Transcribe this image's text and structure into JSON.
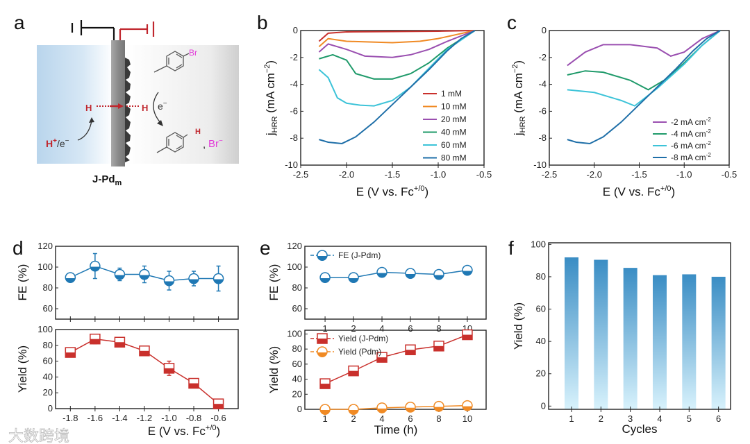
{
  "panel_labels": {
    "a": "a",
    "b": "b",
    "c": "c",
    "d": "d",
    "e": "e",
    "f": "f"
  },
  "watermark": "大数跨境",
  "diagram": {
    "h_left": "H",
    "h_right": "H",
    "proton": "H",
    "proton_sup": "+",
    "proton_rest": "/e",
    "proton_sup2": "−",
    "electron": "e",
    "electron_sup": "−",
    "bromo": "Br",
    "product_h": "H",
    "comma": ",",
    "bromide": "Br",
    "bromide_sup": "−",
    "electrode": "J-Pd",
    "electrode_sub": "m",
    "colors": {
      "red": "#c0262d",
      "magenta": "#e23ad8",
      "blue_bg": "#b9d5ec"
    }
  },
  "chart_data": [
    {
      "panel": "b",
      "type": "line",
      "xlim": [
        -2.5,
        -0.5
      ],
      "ylim": [
        -10,
        0
      ],
      "xticks": [
        -2.5,
        -2.0,
        -1.5,
        -1.0,
        -0.5
      ],
      "xtick_labels": [
        "-2.5",
        "-2.0",
        "-1.5",
        "-1.0",
        "-0.5"
      ],
      "yticks": [
        0,
        -2,
        -4,
        -6,
        -8,
        -10
      ],
      "ytick_labels": [
        "0",
        "-2",
        "-4",
        "-6",
        "-8",
        "-10"
      ],
      "xlabel": [
        "E (V vs. Fc",
        "+/0",
        ")"
      ],
      "ylabel": [
        "j",
        "HRR",
        " (mA cm",
        "−2",
        ")"
      ],
      "legend": "bottom-right",
      "series": [
        {
          "name": "1 mM",
          "color": "#c9302c",
          "x": [
            -2.3,
            -2.2,
            -2.0,
            -1.5,
            -1.0,
            -0.6
          ],
          "y": [
            -0.8,
            -0.2,
            -0.1,
            -0.08,
            -0.05,
            0
          ]
        },
        {
          "name": "10 mM",
          "color": "#f08a24",
          "x": [
            -2.3,
            -2.2,
            -2.0,
            -1.5,
            -1.2,
            -1.0,
            -0.8,
            -0.6
          ],
          "y": [
            -1.2,
            -0.6,
            -0.8,
            -0.9,
            -0.8,
            -0.6,
            -0.3,
            0
          ]
        },
        {
          "name": "20 mM",
          "color": "#9a4fb0",
          "x": [
            -2.3,
            -2.2,
            -2.0,
            -1.8,
            -1.5,
            -1.3,
            -1.1,
            -0.9,
            -0.6
          ],
          "y": [
            -1.6,
            -1.0,
            -1.4,
            -1.9,
            -2.0,
            -1.8,
            -1.4,
            -0.8,
            0
          ]
        },
        {
          "name": "40 mM",
          "color": "#1f9a6a",
          "x": [
            -2.3,
            -2.15,
            -2.0,
            -1.9,
            -1.7,
            -1.5,
            -1.3,
            -1.1,
            -0.9,
            -0.6
          ],
          "y": [
            -2.1,
            -1.8,
            -2.2,
            -3.2,
            -3.6,
            -3.6,
            -3.2,
            -2.4,
            -1.3,
            0
          ]
        },
        {
          "name": "60 mM",
          "color": "#3cc3d8",
          "x": [
            -2.3,
            -2.2,
            -2.1,
            -2.0,
            -1.85,
            -1.7,
            -1.5,
            -1.3,
            -1.1,
            -0.9,
            -0.6
          ],
          "y": [
            -2.9,
            -3.5,
            -5.0,
            -5.4,
            -5.55,
            -5.6,
            -5.2,
            -4.2,
            -2.8,
            -1.4,
            0
          ]
        },
        {
          "name": "80 mM",
          "color": "#1f6fa8",
          "x": [
            -2.3,
            -2.2,
            -2.05,
            -1.9,
            -1.7,
            -1.5,
            -1.3,
            -1.1,
            -0.9,
            -0.75,
            -0.6
          ],
          "y": [
            -8.1,
            -8.3,
            -8.4,
            -7.9,
            -6.8,
            -5.5,
            -4.2,
            -2.9,
            -1.5,
            -0.6,
            0
          ]
        }
      ]
    },
    {
      "panel": "c",
      "type": "line",
      "xlim": [
        -2.5,
        -0.5
      ],
      "ylim": [
        -10,
        0
      ],
      "xticks": [
        -2.5,
        -2.0,
        -1.5,
        -1.0,
        -0.5
      ],
      "xtick_labels": [
        "-2.5",
        "-2.0",
        "-1.5",
        "-1.0",
        "-0.5"
      ],
      "yticks": [
        0,
        -2,
        -4,
        -6,
        -8,
        -10
      ],
      "ytick_labels": [
        "0",
        "-2",
        "-4",
        "-6",
        "-8",
        "-10"
      ],
      "xlabel": [
        "E (V vs. Fc",
        "+/0",
        ")"
      ],
      "ylabel": [
        "j",
        "HRR",
        " (mA cm",
        "−2",
        ")"
      ],
      "legend": "bottom-right",
      "series": [
        {
          "name": "-2 mA cm",
          "sup": "-2",
          "color": "#9a4fb0",
          "x": [
            -2.3,
            -2.1,
            -1.9,
            -1.6,
            -1.3,
            -1.15,
            -1.0,
            -0.8,
            -0.6
          ],
          "y": [
            -2.6,
            -1.6,
            -1.05,
            -1.05,
            -1.3,
            -1.9,
            -1.6,
            -0.6,
            0
          ]
        },
        {
          "name": "-4 mA cm",
          "sup": "-2",
          "color": "#1f9a6a",
          "x": [
            -2.3,
            -2.1,
            -1.9,
            -1.6,
            -1.4,
            -1.2,
            -1.0,
            -0.8,
            -0.6
          ],
          "y": [
            -3.3,
            -3.0,
            -3.1,
            -3.7,
            -4.4,
            -3.6,
            -2.4,
            -1.1,
            0
          ]
        },
        {
          "name": "-6 mA cm",
          "sup": "-2",
          "color": "#3cc3d8",
          "x": [
            -2.3,
            -2.0,
            -1.7,
            -1.55,
            -1.3,
            -1.0,
            -0.8,
            -0.6
          ],
          "y": [
            -4.4,
            -4.6,
            -5.2,
            -5.6,
            -4.3,
            -2.5,
            -1.1,
            0
          ]
        },
        {
          "name": "-8 mA cm",
          "sup": "-2",
          "color": "#1f6fa8",
          "x": [
            -2.3,
            -2.2,
            -2.05,
            -1.9,
            -1.7,
            -1.5,
            -1.3,
            -1.1,
            -0.9,
            -0.75,
            -0.6
          ],
          "y": [
            -8.1,
            -8.3,
            -8.4,
            -7.9,
            -6.8,
            -5.5,
            -4.2,
            -2.9,
            -1.5,
            -0.6,
            0
          ]
        }
      ]
    },
    {
      "panel": "d-top",
      "type": "scatter",
      "xlim": [
        -1.92,
        -0.44
      ],
      "ylim": [
        50,
        120
      ],
      "xticks": [
        -1.8,
        -1.6,
        -1.4,
        -1.2,
        -1.0,
        -0.8,
        -0.6
      ],
      "xtick_labels": [],
      "yticks": [
        120,
        100,
        80,
        60
      ],
      "ytick_labels": [
        "120",
        "100",
        "80",
        "60"
      ],
      "ylabel": [
        "FE (%)"
      ],
      "series": [
        {
          "name": "FE",
          "marker": "circle",
          "color": "#1f78b4",
          "x": [
            -1.8,
            -1.6,
            -1.4,
            -1.2,
            -1.0,
            -0.8,
            -0.6
          ],
          "y": [
            90,
            101,
            93,
            93,
            87,
            89,
            89
          ],
          "err": [
            0,
            12,
            6,
            8,
            9,
            7,
            12
          ]
        }
      ]
    },
    {
      "panel": "d-bottom",
      "type": "scatter",
      "xlim": [
        -1.92,
        -0.44
      ],
      "ylim": [
        0,
        100
      ],
      "xticks": [
        -1.8,
        -1.6,
        -1.4,
        -1.2,
        -1.0,
        -0.8,
        -0.6
      ],
      "xtick_labels": [
        "-1.8",
        "-1.6",
        "-1.4",
        "-1.2",
        "-1.0",
        "-0.8",
        "-0.6"
      ],
      "yticks": [
        100,
        80,
        60,
        40,
        20,
        0
      ],
      "ytick_labels": [
        "100",
        "80",
        "60",
        "40",
        "20",
        "0"
      ],
      "xlabel": [
        "E (V vs. Fc",
        "+/0",
        ")"
      ],
      "ylabel": [
        "Yield (%)"
      ],
      "series": [
        {
          "name": "Yield",
          "marker": "square",
          "color": "#c9302c",
          "x": [
            -1.8,
            -1.6,
            -1.4,
            -1.2,
            -1.0,
            -0.8,
            -0.6
          ],
          "y": [
            71,
            88,
            84,
            73,
            51,
            32,
            6
          ],
          "err": [
            2,
            6,
            4,
            4,
            9,
            3,
            2
          ]
        }
      ]
    },
    {
      "panel": "e-top",
      "type": "scatter",
      "categories": [
        "1",
        "2",
        "4",
        "6",
        "8",
        "10"
      ],
      "ylim": [
        50,
        120
      ],
      "yticks": [
        120,
        100,
        80,
        60
      ],
      "ytick_labels": [
        "120",
        "100",
        "80",
        "60"
      ],
      "ylabel": [
        "FE (%)"
      ],
      "legend": "top-left",
      "series": [
        {
          "name": "FE (J-Pdm)",
          "marker": "circle",
          "color": "#1f78b4",
          "y": [
            90,
            90,
            95,
            94,
            93,
            97
          ]
        }
      ]
    },
    {
      "panel": "e-bottom",
      "type": "scatter",
      "categories": [
        "1",
        "2",
        "4",
        "6",
        "8",
        "10"
      ],
      "ylim": [
        0,
        105
      ],
      "yticks": [
        100,
        80,
        60,
        40,
        20,
        0
      ],
      "ytick_labels": [
        "100",
        "80",
        "60",
        "40",
        "20",
        "0"
      ],
      "xlabel": [
        "Time (h)"
      ],
      "ylabel": [
        "Yield (%)"
      ],
      "legend": "top-left",
      "series": [
        {
          "name": "Yield (J-Pdm)",
          "marker": "square",
          "color": "#c9302c",
          "y": [
            34,
            51,
            69,
            79,
            84,
            99
          ]
        },
        {
          "name": "Yield (Pdm)",
          "marker": "circle",
          "color": "#f08a24",
          "y": [
            0,
            0,
            2,
            3,
            4,
            5
          ]
        }
      ]
    },
    {
      "panel": "f",
      "type": "bar",
      "categories": [
        "1",
        "2",
        "3",
        "4",
        "5",
        "6"
      ],
      "values": [
        92,
        90.5,
        85.5,
        81,
        81.5,
        80
      ],
      "ylim": [
        -2,
        101
      ],
      "yticks": [
        100,
        80,
        60,
        40,
        20,
        0
      ],
      "ytick_labels": [
        "100",
        "80",
        "60",
        "40",
        "20",
        "0"
      ],
      "xlabel": [
        "Cycles"
      ],
      "ylabel": [
        "Yield (%)"
      ],
      "bar_colors": [
        "#3a8dc4",
        "#d8f2fc"
      ]
    }
  ]
}
